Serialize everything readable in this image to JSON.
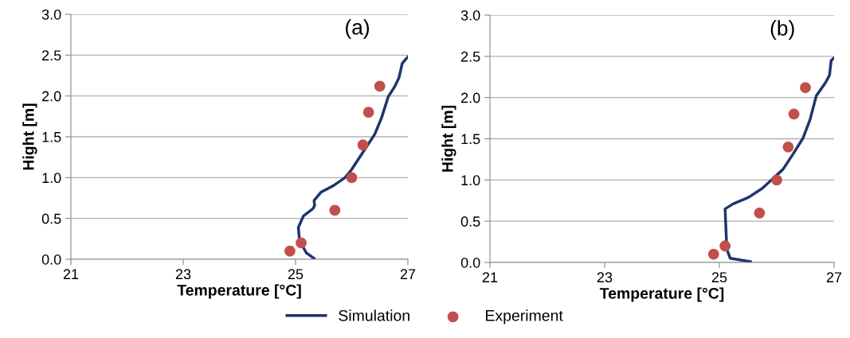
{
  "chart_data": [
    {
      "type": "line",
      "annotations": [
        "(a)"
      ],
      "xlabel": "Temperature [°C]",
      "ylabel": "Hight [m]",
      "xlim": [
        21,
        27
      ],
      "ylim": [
        0,
        3
      ],
      "xticks": [
        21,
        23,
        25,
        27
      ],
      "yticks": [
        {
          "value": 0,
          "label": "0.0"
        },
        {
          "value": 0.5,
          "label": "0.5"
        },
        {
          "value": 1,
          "label": "1.0"
        },
        {
          "value": 1.5,
          "label": "1.5"
        },
        {
          "value": 2,
          "label": "2.0"
        },
        {
          "value": 2.5,
          "label": "2.5"
        },
        {
          "value": 3,
          "label": "3.0"
        }
      ],
      "grid": "y",
      "legend": "bottom",
      "series": [
        {
          "name": "Simulation",
          "type": "line",
          "color": "#1f3470",
          "x": [
            25.33,
            25.19,
            25.07,
            25.05,
            25.14,
            25.31,
            25.34,
            25.33,
            25.45,
            25.67,
            25.88,
            26.0,
            26.19,
            26.41,
            26.53,
            26.65,
            26.77,
            26.84,
            26.9,
            27.0
          ],
          "values": [
            0.01,
            0.08,
            0.23,
            0.39,
            0.53,
            0.62,
            0.66,
            0.72,
            0.82,
            0.9,
            1.0,
            1.1,
            1.3,
            1.53,
            1.73,
            1.99,
            2.12,
            2.22,
            2.4,
            2.48
          ]
        },
        {
          "name": "Experiment",
          "type": "scatter",
          "color": "#c0504d",
          "marker": "circle",
          "x": [
            24.9,
            25.1,
            25.7,
            26.0,
            26.2,
            26.3,
            26.5
          ],
          "values": [
            0.1,
            0.2,
            0.6,
            1.0,
            1.4,
            1.8,
            2.12
          ]
        }
      ]
    },
    {
      "type": "line",
      "annotations": [
        "(b)"
      ],
      "xlabel": "Temperature [°C]",
      "ylabel": "Hight [m]",
      "xlim": [
        21,
        27
      ],
      "ylim": [
        0,
        3
      ],
      "xticks": [
        21,
        23,
        25,
        27
      ],
      "yticks": [
        {
          "value": 0,
          "label": "0.0"
        },
        {
          "value": 0.5,
          "label": "0.5"
        },
        {
          "value": 1,
          "label": "1.0"
        },
        {
          "value": 1.5,
          "label": "1.5"
        },
        {
          "value": 2,
          "label": "2.0"
        },
        {
          "value": 2.5,
          "label": "2.5"
        },
        {
          "value": 3,
          "label": "3.0"
        }
      ],
      "grid": "y",
      "series": [
        {
          "type": "line",
          "color": "#1f3470",
          "x": [
            25.54,
            25.19,
            25.13,
            25.1,
            25.24,
            25.51,
            25.75,
            26.11,
            26.29,
            26.46,
            26.58,
            26.69,
            26.85,
            26.92,
            26.95,
            27.0
          ],
          "values": [
            0.01,
            0.05,
            0.16,
            0.65,
            0.71,
            0.79,
            0.9,
            1.13,
            1.32,
            1.51,
            1.73,
            2.02,
            2.18,
            2.27,
            2.45,
            2.48
          ]
        },
        {
          "type": "scatter",
          "color": "#c0504d",
          "marker": "circle",
          "x": [
            24.9,
            25.1,
            25.7,
            26.0,
            26.2,
            26.3,
            26.5
          ],
          "values": [
            0.1,
            0.2,
            0.6,
            1.0,
            1.4,
            1.8,
            2.12
          ]
        }
      ]
    }
  ]
}
